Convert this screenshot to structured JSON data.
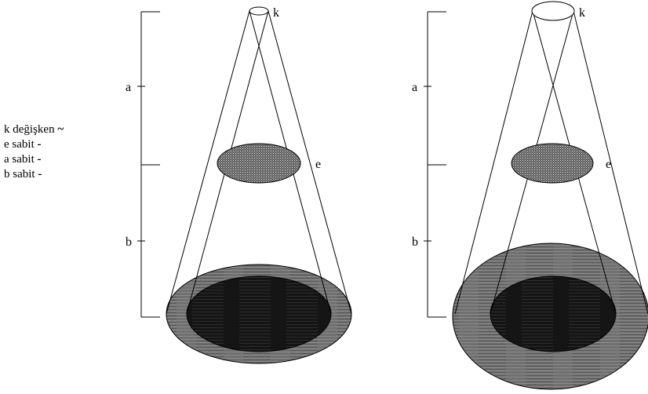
{
  "legend": [
    {
      "text": "k değişken",
      "mark": "~"
    },
    {
      "text": "e sabit",
      "mark": "-"
    },
    {
      "text": "a sabit",
      "mark": "-"
    },
    {
      "text": "b sabit",
      "mark": "-"
    }
  ],
  "labels": {
    "a": "a",
    "b": "b",
    "k": "k",
    "e": "e"
  },
  "colors": {
    "line": "#000000",
    "lens_fill": "#3a3a3a",
    "outer_disc": "#6e6e6e",
    "inner_disc": "#141414"
  }
}
